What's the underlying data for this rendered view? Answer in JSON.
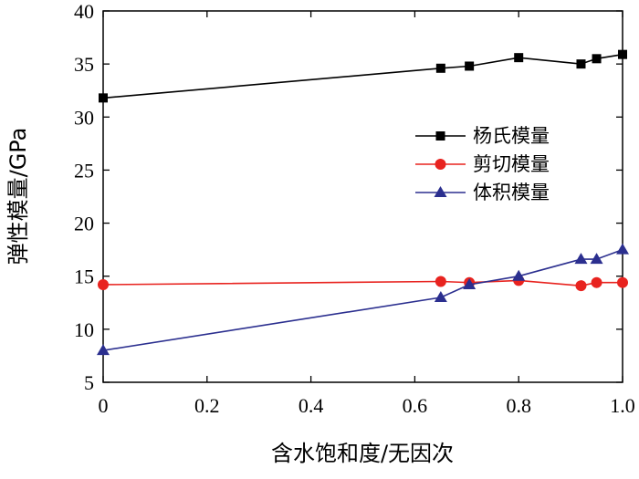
{
  "chart_data": {
    "type": "line",
    "title": "",
    "xlabel": "含水饱和度/无因次",
    "ylabel": "弹性模量/GPa",
    "xlim": [
      0,
      1.0
    ],
    "ylim": [
      5,
      40
    ],
    "x_ticks": [
      0,
      0.2,
      0.4,
      0.6,
      0.8,
      1.0
    ],
    "x_tick_labels": [
      "0",
      "0.2",
      "0.4",
      "0.6",
      "0.8",
      "1.0"
    ],
    "y_ticks": [
      5,
      10,
      15,
      20,
      25,
      30,
      35,
      40
    ],
    "y_tick_labels": [
      "5",
      "10",
      "15",
      "20",
      "25",
      "30",
      "35",
      "40"
    ],
    "grid": false,
    "legend_position": "right-middle",
    "series": [
      {
        "name": "杨氏模量",
        "color": "#000000",
        "marker": "square",
        "x": [
          0,
          0.65,
          0.705,
          0.8,
          0.92,
          0.95,
          1.0
        ],
        "y": [
          31.8,
          34.6,
          34.8,
          35.6,
          35.0,
          35.5,
          35.9
        ]
      },
      {
        "name": "剪切模量",
        "color": "#e8231f",
        "marker": "circle",
        "x": [
          0,
          0.65,
          0.705,
          0.8,
          0.92,
          0.95,
          1.0
        ],
        "y": [
          14.2,
          14.5,
          14.4,
          14.6,
          14.1,
          14.4,
          14.4
        ]
      },
      {
        "name": "体积模量",
        "color": "#2b2f8f",
        "marker": "triangle",
        "x": [
          0,
          0.65,
          0.705,
          0.8,
          0.92,
          0.95,
          1.0
        ],
        "y": [
          8.0,
          13.0,
          14.2,
          15.0,
          16.6,
          16.6,
          17.5
        ]
      }
    ]
  }
}
